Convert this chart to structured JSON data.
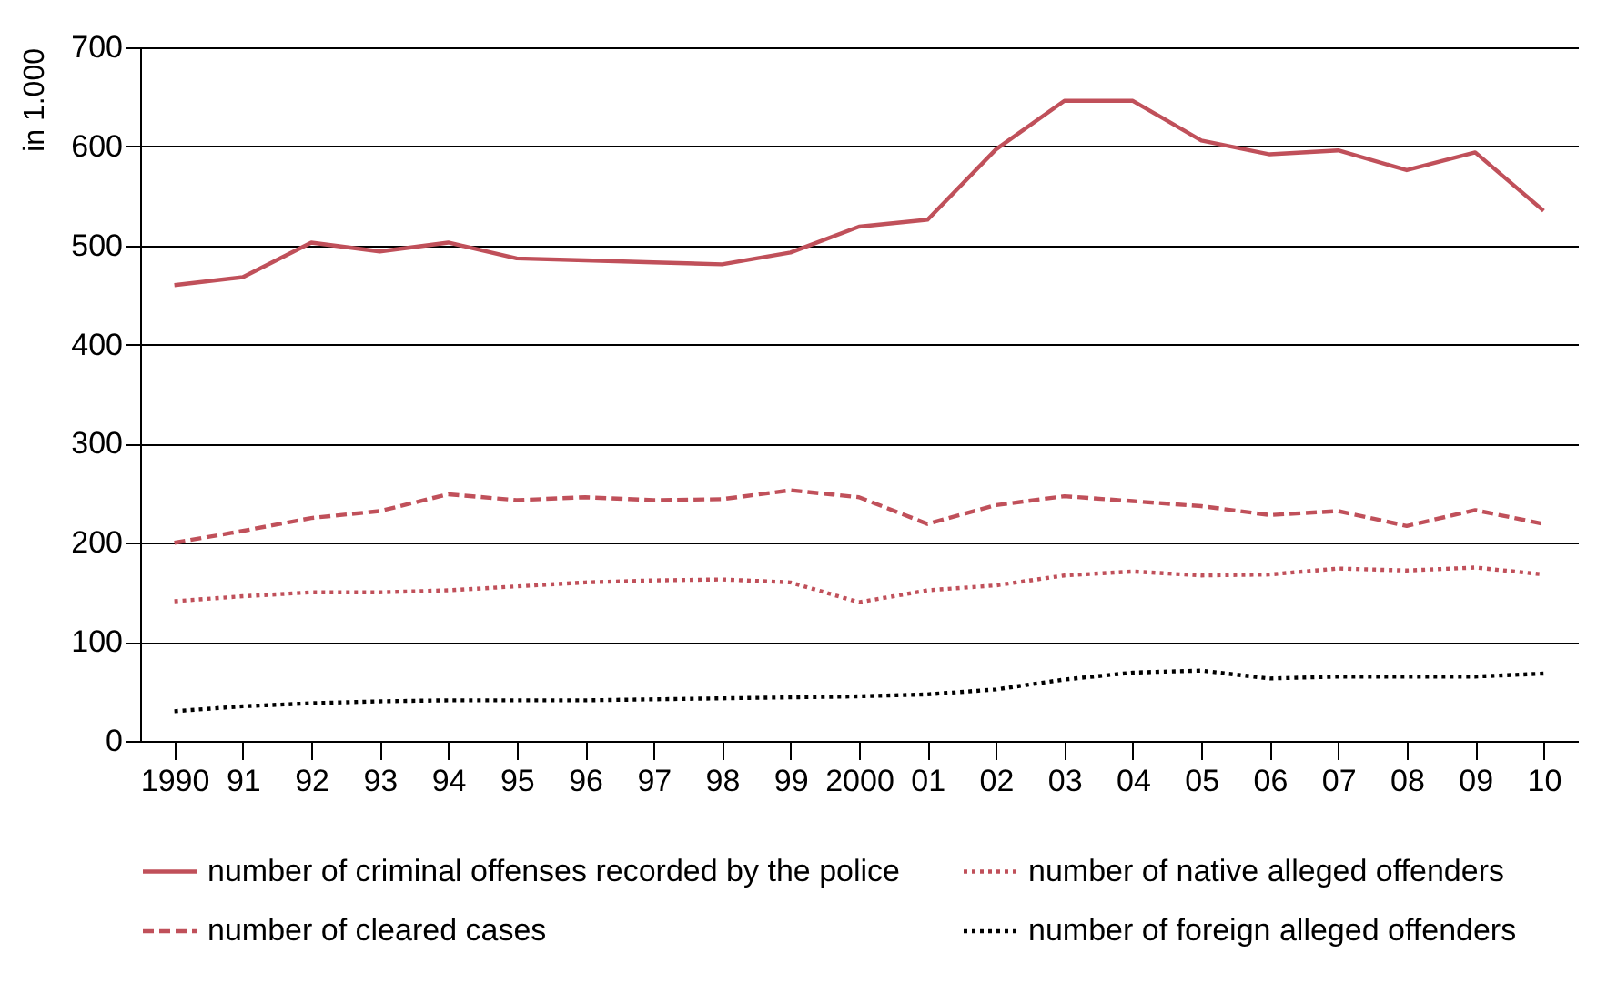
{
  "chart_data": {
    "type": "line",
    "ylabel": "in 1.000",
    "categories": [
      "1990",
      "91",
      "92",
      "93",
      "94",
      "95",
      "96",
      "97",
      "98",
      "99",
      "2000",
      "01",
      "02",
      "03",
      "04",
      "05",
      "06",
      "07",
      "08",
      "09",
      "10"
    ],
    "ylim": [
      0,
      700
    ],
    "yticks": [
      0,
      100,
      200,
      300,
      400,
      500,
      600,
      700
    ],
    "grid": "y",
    "legend": "bottom",
    "marker": "none",
    "series": [
      {
        "name": "number of criminal offenses recorded by the police",
        "color": "#c0505a",
        "line_style": "solid",
        "values": [
          460,
          468,
          503,
          494,
          503,
          487,
          485,
          483,
          481,
          493,
          519,
          526,
          597,
          646,
          646,
          606,
          592,
          596,
          576,
          594,
          535
        ]
      },
      {
        "name": "number of cleared cases",
        "color": "#c0505a",
        "line_style": "dashed",
        "values": [
          200,
          212,
          225,
          232,
          249,
          243,
          246,
          243,
          244,
          253,
          246,
          219,
          238,
          247,
          242,
          237,
          228,
          232,
          217,
          233,
          219
        ]
      },
      {
        "name": "number of native alleged offenders",
        "color": "#c0505a",
        "line_style": "dotted",
        "values": [
          141,
          146,
          150,
          150,
          152,
          156,
          160,
          162,
          163,
          160,
          140,
          152,
          157,
          167,
          171,
          167,
          168,
          174,
          172,
          175,
          168
        ]
      },
      {
        "name": "number of foreign alleged offenders",
        "color": "#000000",
        "line_style": "dotted",
        "values": [
          30,
          35,
          38,
          40,
          41,
          41,
          41,
          42,
          43,
          44,
          45,
          47,
          52,
          62,
          69,
          71,
          63,
          65,
          65,
          65,
          68
        ]
      }
    ]
  }
}
